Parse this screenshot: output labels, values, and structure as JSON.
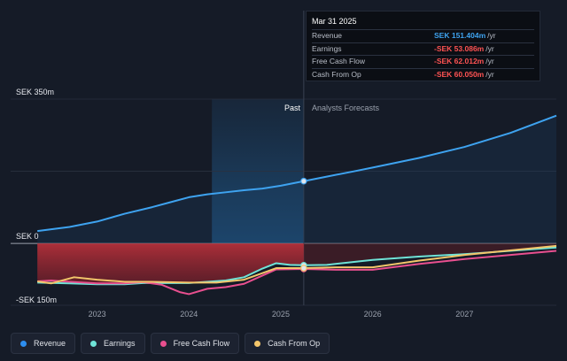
{
  "tooltip": {
    "date": "Mar 31 2025",
    "rows": [
      {
        "label": "Revenue",
        "value": "SEK 151.404m",
        "unit": "/yr",
        "color": "#3ea3f0"
      },
      {
        "label": "Earnings",
        "value": "-SEK 53.086m",
        "unit": "/yr",
        "color": "#ff5353"
      },
      {
        "label": "Free Cash Flow",
        "value": "-SEK 62.012m",
        "unit": "/yr",
        "color": "#ff5353"
      },
      {
        "label": "Cash From Op",
        "value": "-SEK 60.050m",
        "unit": "/yr",
        "color": "#ff5353"
      }
    ]
  },
  "legend": [
    {
      "label": "Revenue",
      "color": "#2d8ef0"
    },
    {
      "label": "Earnings",
      "color": "#6fe3d7"
    },
    {
      "label": "Free Cash Flow",
      "color": "#e84f8f"
    },
    {
      "label": "Cash From Op",
      "color": "#f3c66b"
    }
  ],
  "chart_data": {
    "type": "line",
    "y_axis_labels": {
      "top": "SEK 350m",
      "zero": "SEK 0",
      "bottom": "-SEK 150m"
    },
    "ylim": [
      -150,
      350
    ],
    "xlim": [
      2022.3,
      2028.0
    ],
    "x_ticks": [
      {
        "value": 2023,
        "label": "2023"
      },
      {
        "value": 2024,
        "label": "2024"
      },
      {
        "value": 2025,
        "label": "2025"
      },
      {
        "value": 2026,
        "label": "2026"
      },
      {
        "value": 2027,
        "label": "2027"
      }
    ],
    "split_x": 2025.25,
    "past_label": "Past",
    "forecast_label": "Analysts Forecasts",
    "series": [
      {
        "name": "Revenue",
        "color": "#3ea3f0",
        "points": [
          [
            2022.35,
            30
          ],
          [
            2022.7,
            40
          ],
          [
            2023.0,
            53
          ],
          [
            2023.3,
            72
          ],
          [
            2023.6,
            88
          ],
          [
            2023.8,
            100
          ],
          [
            2024.0,
            112
          ],
          [
            2024.2,
            119
          ],
          [
            2024.4,
            124
          ],
          [
            2024.6,
            129
          ],
          [
            2024.8,
            133
          ],
          [
            2025.0,
            140
          ],
          [
            2025.25,
            151
          ],
          [
            2025.5,
            162
          ],
          [
            2025.8,
            175
          ],
          [
            2026.0,
            184
          ],
          [
            2026.5,
            207
          ],
          [
            2027.0,
            234
          ],
          [
            2027.5,
            268
          ],
          [
            2028.0,
            310
          ]
        ]
      },
      {
        "name": "Earnings",
        "color": "#6fe3d7",
        "points": [
          [
            2022.35,
            -95
          ],
          [
            2022.7,
            -97
          ],
          [
            2023.0,
            -99
          ],
          [
            2023.3,
            -99
          ],
          [
            2023.5,
            -96
          ],
          [
            2023.8,
            -96
          ],
          [
            2024.0,
            -96
          ],
          [
            2024.2,
            -93
          ],
          [
            2024.4,
            -90
          ],
          [
            2024.6,
            -82
          ],
          [
            2024.8,
            -61
          ],
          [
            2024.95,
            -48
          ],
          [
            2025.1,
            -52
          ],
          [
            2025.25,
            -53
          ],
          [
            2025.5,
            -52
          ],
          [
            2026.0,
            -40
          ],
          [
            2026.5,
            -32
          ],
          [
            2027.0,
            -26
          ],
          [
            2027.5,
            -18
          ],
          [
            2028.0,
            -10
          ]
        ]
      },
      {
        "name": "Free Cash Flow",
        "color": "#e84f8f",
        "points": [
          [
            2022.35,
            -92
          ],
          [
            2022.5,
            -90
          ],
          [
            2022.7,
            -93
          ],
          [
            2023.0,
            -97
          ],
          [
            2023.3,
            -97
          ],
          [
            2023.5,
            -94
          ],
          [
            2023.7,
            -100
          ],
          [
            2023.9,
            -118
          ],
          [
            2024.0,
            -123
          ],
          [
            2024.2,
            -110
          ],
          [
            2024.4,
            -106
          ],
          [
            2024.6,
            -98
          ],
          [
            2024.8,
            -78
          ],
          [
            2024.95,
            -63
          ],
          [
            2025.25,
            -62
          ],
          [
            2025.6,
            -64
          ],
          [
            2026.0,
            -64
          ],
          [
            2026.5,
            -50
          ],
          [
            2027.0,
            -38
          ],
          [
            2027.5,
            -28
          ],
          [
            2028.0,
            -18
          ]
        ]
      },
      {
        "name": "Cash From Op",
        "color": "#f3c66b",
        "points": [
          [
            2022.35,
            -92
          ],
          [
            2022.5,
            -97
          ],
          [
            2022.75,
            -82
          ],
          [
            2023.0,
            -88
          ],
          [
            2023.3,
            -93
          ],
          [
            2023.6,
            -93
          ],
          [
            2024.0,
            -95
          ],
          [
            2024.3,
            -95
          ],
          [
            2024.6,
            -88
          ],
          [
            2024.8,
            -72
          ],
          [
            2024.95,
            -60
          ],
          [
            2025.25,
            -60
          ],
          [
            2025.6,
            -58
          ],
          [
            2026.0,
            -58
          ],
          [
            2026.5,
            -42
          ],
          [
            2027.0,
            -28
          ],
          [
            2027.5,
            -17
          ],
          [
            2028.0,
            -6
          ]
        ]
      }
    ]
  }
}
